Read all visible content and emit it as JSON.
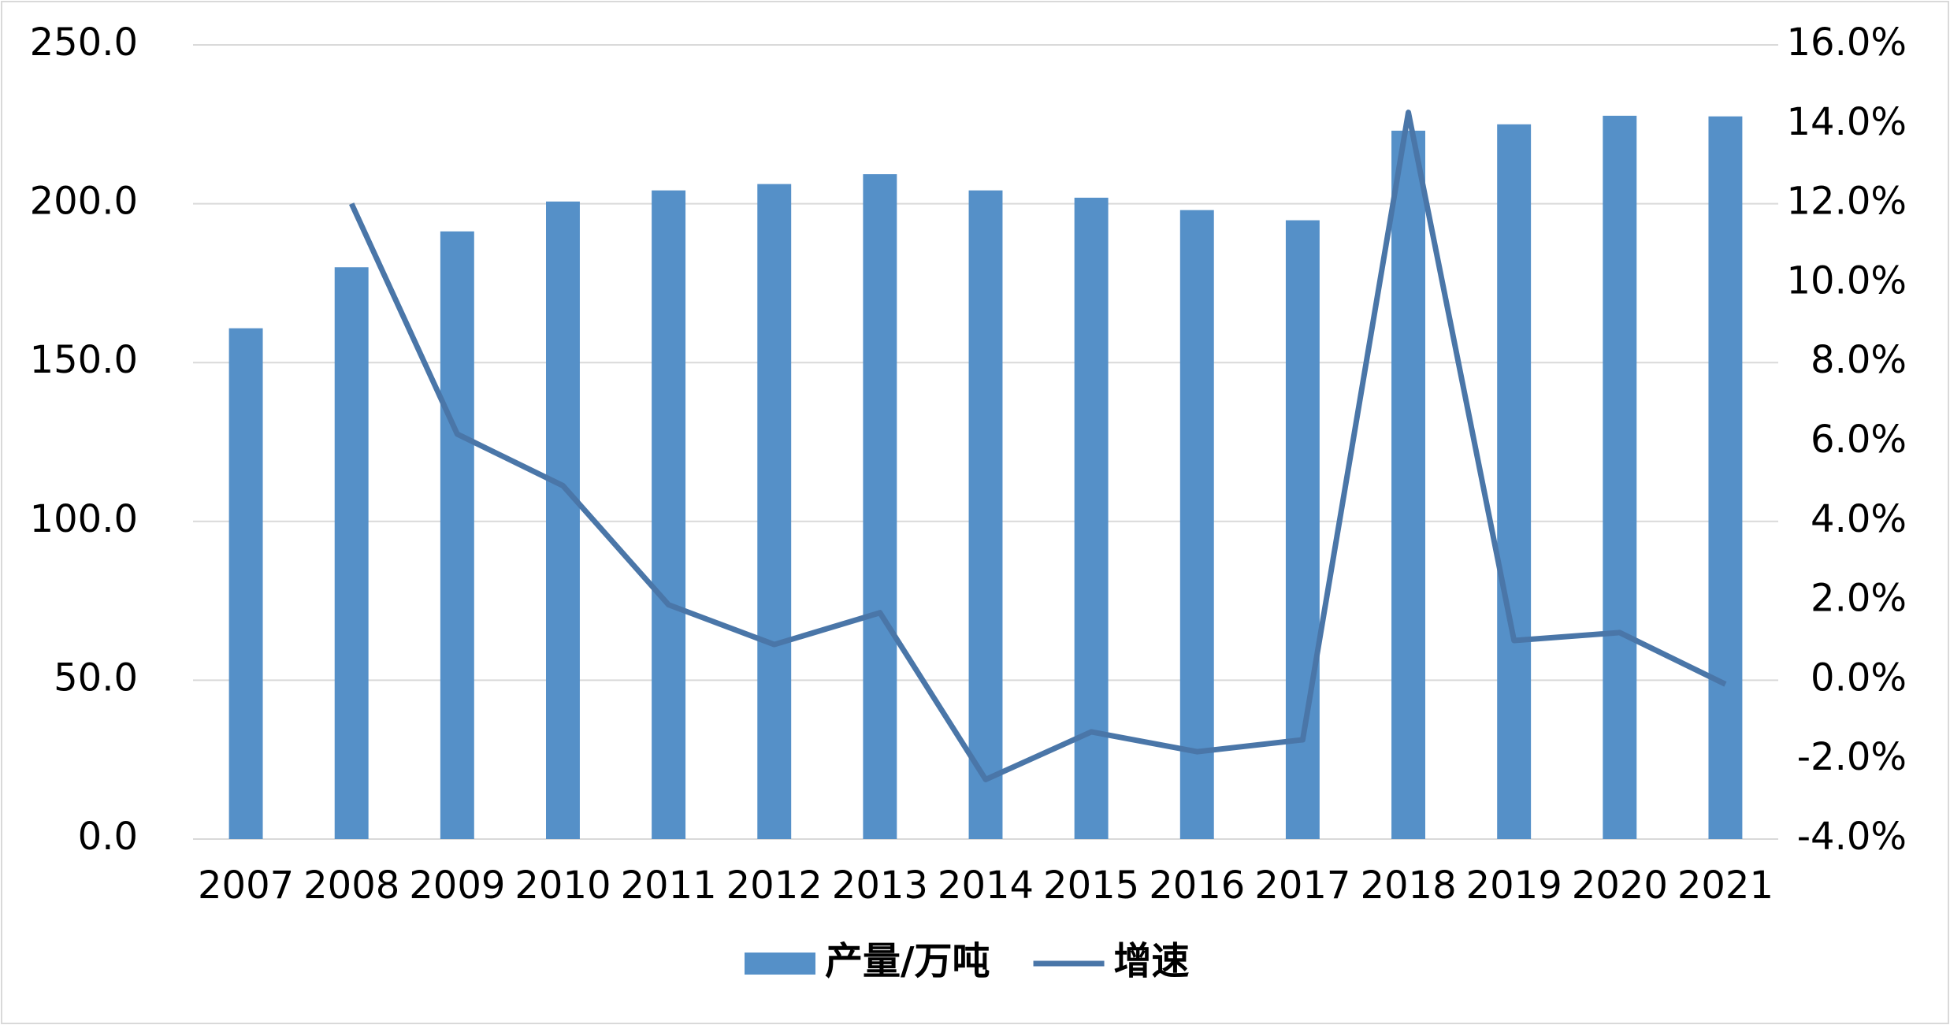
{
  "chart_data": {
    "type": "bar",
    "categories": [
      "2007",
      "2008",
      "2009",
      "2010",
      "2011",
      "2012",
      "2013",
      "2014",
      "2015",
      "2016",
      "2017",
      "2018",
      "2019",
      "2020",
      "2021"
    ],
    "series": [
      {
        "name": "产量/万吨",
        "type": "bar",
        "color": "#5590c8",
        "axis": "y",
        "values": [
          160.8,
          180.0,
          191.3,
          200.7,
          204.2,
          206.2,
          209.3,
          204.2,
          201.9,
          198.0,
          194.8,
          223.0,
          225.0,
          227.7,
          227.5
        ]
      },
      {
        "name": "增速",
        "type": "line",
        "color": "#4a76a8",
        "axis": "y2",
        "values": [
          null,
          12.0,
          6.2,
          4.9,
          1.9,
          0.9,
          1.7,
          -2.5,
          -1.3,
          -1.8,
          -1.5,
          14.3,
          1.0,
          1.2,
          -0.1
        ]
      }
    ],
    "ylim": [
      0,
      250
    ],
    "yticks": [
      {
        "value": 0,
        "label": "0.0"
      },
      {
        "value": 50,
        "label": "50.0"
      },
      {
        "value": 100,
        "label": "100.0"
      },
      {
        "value": 150,
        "label": "150.0"
      },
      {
        "value": 200,
        "label": "200.0"
      },
      {
        "value": 250,
        "label": "250.0"
      }
    ],
    "y2lim": [
      -4,
      16
    ],
    "y2ticks": [
      {
        "value": -4,
        "label": "-4.0%"
      },
      {
        "value": -2,
        "label": "-2.0%"
      },
      {
        "value": 0,
        "label": "0.0%"
      },
      {
        "value": 2,
        "label": "2.0%"
      },
      {
        "value": 4,
        "label": "4.0%"
      },
      {
        "value": 6,
        "label": "6.0%"
      },
      {
        "value": 8,
        "label": "8.0%"
      },
      {
        "value": 10,
        "label": "10.0%"
      },
      {
        "value": 12,
        "label": "12.0%"
      },
      {
        "value": 14,
        "label": "14.0%"
      },
      {
        "value": 16,
        "label": "16.0%"
      }
    ],
    "grid": true,
    "legend": "bottom"
  }
}
